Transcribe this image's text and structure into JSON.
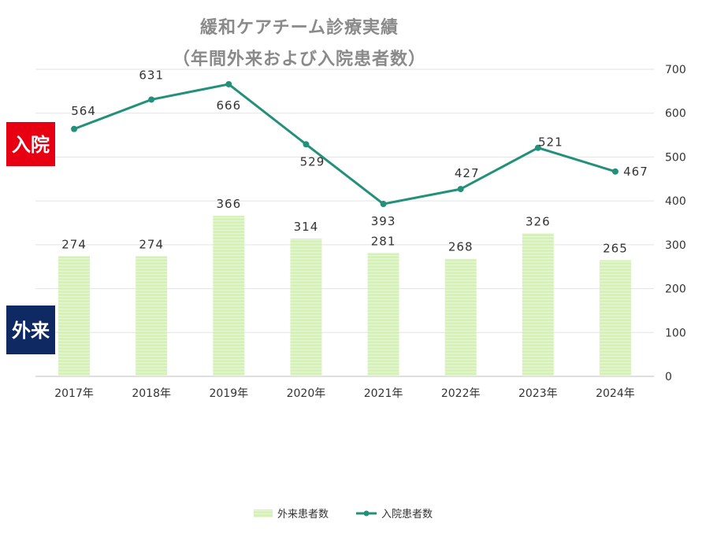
{
  "chart_data": {
    "type": "bar+line",
    "title": "緩和ケアチーム診療実績",
    "subtitle": "（年間外来および入院患者数）",
    "categories": [
      "2017年",
      "2018年",
      "2019年",
      "2020年",
      "2021年",
      "2022年",
      "2023年",
      "2024年"
    ],
    "series": [
      {
        "name": "外来患者数",
        "type": "bar",
        "values": [
          274,
          274,
          366,
          314,
          281,
          268,
          326,
          265
        ],
        "color": "#d4f2b4"
      },
      {
        "name": "入院患者数",
        "type": "line",
        "values": [
          564,
          631,
          666,
          529,
          393,
          427,
          521,
          467
        ],
        "color": "#23907a"
      }
    ],
    "ylim": [
      0,
      700
    ],
    "yticks": [
      0,
      100,
      200,
      300,
      400,
      500,
      600,
      700
    ],
    "y_axis_side": "right",
    "grid": true,
    "legend_position": "bottom"
  },
  "badges": {
    "inpatient": {
      "label": "入院",
      "color": "#e60012"
    },
    "outpatient": {
      "label": "外来",
      "color": "#0f2a63"
    }
  }
}
